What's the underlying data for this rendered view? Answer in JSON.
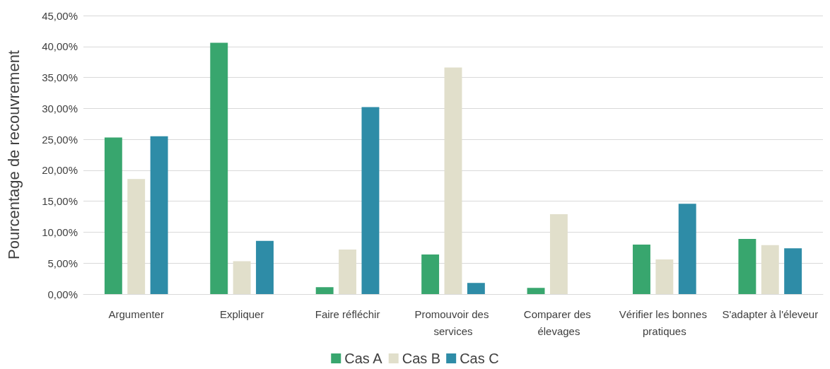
{
  "chart_data": {
    "type": "bar",
    "ylabel": "Pourcentage de recouvrement",
    "categories": [
      "Argumenter",
      "Expliquer",
      "Faire réfléchir",
      "Promouvoir des services",
      "Comparer des élevages",
      "Vérifier les bonnes pratiques",
      "S'adapter à l'éleveur"
    ],
    "series": [
      {
        "name": "Cas A",
        "color": "#38a66e",
        "values": [
          25.3,
          40.6,
          1.1,
          6.4,
          1.0,
          8.0,
          8.9
        ]
      },
      {
        "name": "Cas B",
        "color": "#e1dfcb",
        "values": [
          18.6,
          5.3,
          7.2,
          36.6,
          12.9,
          5.6,
          7.9
        ]
      },
      {
        "name": "Cas C",
        "color": "#2e8ca7",
        "values": [
          25.5,
          8.6,
          30.2,
          1.8,
          0,
          14.6,
          7.4
        ]
      }
    ],
    "ylim": [
      0,
      45
    ],
    "yticks": [
      {
        "value": 0,
        "label": "0,00%"
      },
      {
        "value": 5,
        "label": "5,00%"
      },
      {
        "value": 10,
        "label": "10,00%"
      },
      {
        "value": 15,
        "label": "15,00%"
      },
      {
        "value": 20,
        "label": "20,00%"
      },
      {
        "value": 25,
        "label": "25,00%"
      },
      {
        "value": 30,
        "label": "30,00%"
      },
      {
        "value": 35,
        "label": "35,00%"
      },
      {
        "value": 40,
        "label": "40,00%"
      },
      {
        "value": 45,
        "label": "45,00%"
      }
    ],
    "grid": "y",
    "legend": "bottom"
  }
}
